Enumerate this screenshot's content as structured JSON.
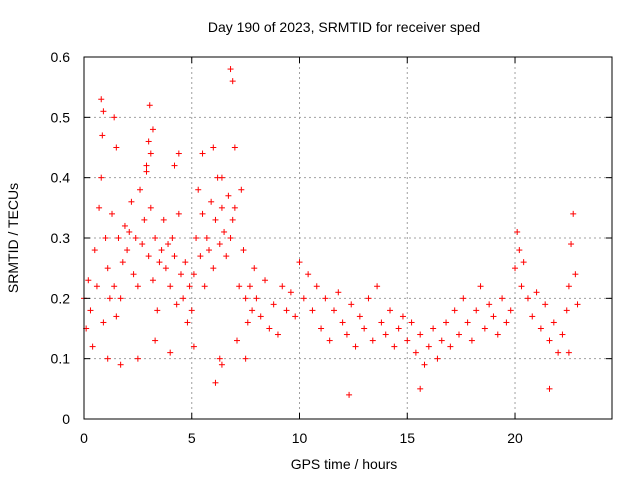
{
  "chart_data": {
    "type": "scatter",
    "title": "Day 190 of 2023, SRMTID for receiver sped",
    "xlabel": "GPS time / hours",
    "ylabel": "SRMTID / TECUs",
    "xlim": [
      0,
      24.5
    ],
    "ylim": [
      0,
      0.6
    ],
    "x_ticks": [
      0,
      5,
      10,
      15,
      20
    ],
    "x_tick_labels": [
      "0",
      "5",
      "10",
      "15",
      "20"
    ],
    "y_ticks": [
      0,
      0.1,
      0.2,
      0.3,
      0.4,
      0.5,
      0.6
    ],
    "y_tick_labels": [
      "0",
      "0.1",
      "0.2",
      "0.3",
      "0.4",
      "0.5",
      "0.6"
    ],
    "grid": true,
    "marker": "+",
    "series": [
      {
        "name": "SRMTID",
        "color": "#ff0000",
        "x": [
          0.0,
          0.1,
          0.2,
          0.3,
          0.4,
          0.5,
          0.6,
          0.7,
          0.8,
          0.9,
          1.0,
          1.1,
          1.2,
          1.3,
          1.4,
          1.5,
          1.6,
          1.7,
          1.8,
          1.9,
          2.0,
          2.1,
          2.2,
          2.3,
          2.4,
          2.5,
          2.6,
          2.7,
          2.8,
          2.9,
          3.0,
          3.1,
          3.2,
          3.3,
          3.4,
          3.5,
          3.6,
          3.7,
          3.8,
          3.9,
          4.0,
          4.1,
          4.2,
          4.3,
          4.4,
          4.5,
          4.6,
          4.7,
          4.8,
          4.9,
          5.0,
          5.1,
          5.2,
          5.3,
          5.4,
          5.5,
          5.6,
          5.7,
          5.8,
          5.9,
          6.0,
          6.1,
          6.2,
          6.3,
          6.4,
          6.5,
          6.6,
          6.7,
          6.8,
          6.9,
          7.0,
          7.1,
          7.2,
          7.3,
          7.4,
          7.5,
          7.6,
          7.7,
          7.8,
          7.9,
          8.0,
          8.2,
          8.4,
          8.6,
          8.8,
          9.0,
          9.2,
          9.4,
          9.6,
          9.8,
          10.0,
          10.2,
          10.4,
          10.6,
          10.8,
          11.0,
          11.2,
          11.4,
          11.6,
          11.8,
          12.0,
          12.2,
          12.4,
          12.6,
          12.8,
          13.0,
          13.2,
          13.4,
          13.6,
          13.8,
          14.0,
          14.2,
          14.4,
          14.6,
          14.8,
          15.0,
          15.2,
          15.4,
          15.6,
          15.8,
          16.0,
          16.2,
          16.4,
          16.6,
          16.8,
          17.0,
          17.2,
          17.4,
          17.6,
          17.8,
          18.0,
          18.2,
          18.4,
          18.6,
          18.8,
          19.0,
          19.2,
          19.4,
          19.6,
          19.8,
          20.0,
          20.1,
          20.2,
          20.3,
          20.4,
          20.6,
          20.8,
          21.0,
          21.2,
          21.4,
          21.6,
          21.8,
          22.0,
          22.2,
          22.4,
          22.5,
          22.6,
          22.7,
          22.8,
          22.9,
          0.8,
          0.85,
          0.9,
          1.4,
          1.5,
          2.9,
          3.0,
          3.05,
          3.1,
          3.2,
          4.2,
          4.4,
          5.5,
          6.0,
          6.4,
          6.8,
          6.9,
          7.0,
          1.1,
          1.7,
          2.5,
          3.3,
          4.0,
          5.1,
          6.1,
          6.3,
          6.4,
          7.5,
          12.3,
          15.6,
          21.6,
          22.5
        ],
        "y": [
          0.2,
          0.15,
          0.23,
          0.18,
          0.12,
          0.28,
          0.22,
          0.35,
          0.4,
          0.16,
          0.3,
          0.25,
          0.2,
          0.34,
          0.22,
          0.17,
          0.3,
          0.2,
          0.26,
          0.32,
          0.28,
          0.31,
          0.36,
          0.24,
          0.3,
          0.22,
          0.38,
          0.29,
          0.33,
          0.41,
          0.27,
          0.35,
          0.23,
          0.3,
          0.18,
          0.26,
          0.28,
          0.33,
          0.25,
          0.29,
          0.22,
          0.3,
          0.27,
          0.19,
          0.34,
          0.24,
          0.2,
          0.26,
          0.16,
          0.22,
          0.18,
          0.24,
          0.3,
          0.38,
          0.27,
          0.34,
          0.22,
          0.3,
          0.28,
          0.36,
          0.25,
          0.33,
          0.4,
          0.29,
          0.35,
          0.31,
          0.27,
          0.37,
          0.3,
          0.33,
          0.35,
          0.13,
          0.22,
          0.38,
          0.28,
          0.2,
          0.16,
          0.22,
          0.18,
          0.25,
          0.2,
          0.17,
          0.23,
          0.15,
          0.19,
          0.14,
          0.22,
          0.18,
          0.21,
          0.17,
          0.26,
          0.2,
          0.24,
          0.18,
          0.22,
          0.15,
          0.2,
          0.13,
          0.18,
          0.21,
          0.16,
          0.14,
          0.19,
          0.12,
          0.17,
          0.15,
          0.2,
          0.13,
          0.22,
          0.16,
          0.14,
          0.18,
          0.12,
          0.15,
          0.17,
          0.13,
          0.16,
          0.11,
          0.14,
          0.09,
          0.12,
          0.15,
          0.1,
          0.13,
          0.16,
          0.12,
          0.18,
          0.14,
          0.2,
          0.16,
          0.13,
          0.18,
          0.22,
          0.15,
          0.19,
          0.17,
          0.14,
          0.2,
          0.16,
          0.18,
          0.25,
          0.31,
          0.28,
          0.22,
          0.26,
          0.2,
          0.17,
          0.21,
          0.15,
          0.19,
          0.13,
          0.16,
          0.11,
          0.14,
          0.18,
          0.22,
          0.29,
          0.34,
          0.24,
          0.19,
          0.53,
          0.47,
          0.51,
          0.5,
          0.45,
          0.42,
          0.46,
          0.52,
          0.44,
          0.48,
          0.42,
          0.44,
          0.44,
          0.45,
          0.4,
          0.58,
          0.56,
          0.45,
          0.1,
          0.09,
          0.1,
          0.13,
          0.11,
          0.12,
          0.06,
          0.1,
          0.09,
          0.1,
          0.04,
          0.05,
          0.05,
          0.11
        ]
      }
    ]
  }
}
